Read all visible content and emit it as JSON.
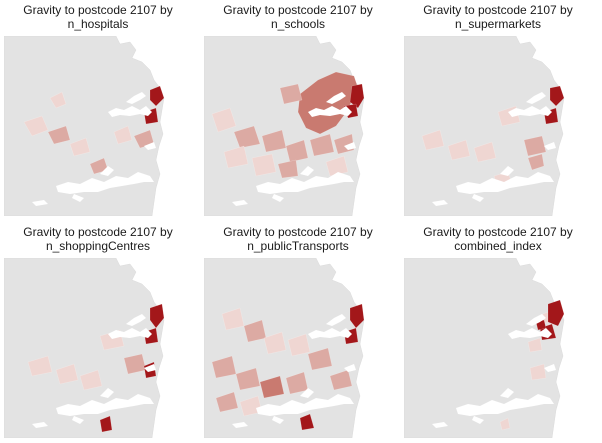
{
  "panels": [
    {
      "line1": "Gravity to postcode 2107 by",
      "line2": "n_hospitals"
    },
    {
      "line1": "Gravity to postcode 2107 by",
      "line2": "n_schools"
    },
    {
      "line1": "Gravity to postcode 2107 by",
      "line2": "n_supermarkets"
    },
    {
      "line1": "Gravity to postcode 2107 by",
      "line2": "n_shoppingCentres"
    },
    {
      "line1": "Gravity to postcode 2107 by",
      "line2": "n_publicTransports"
    },
    {
      "line1": "Gravity to postcode 2107 by",
      "line2": "combined_index"
    }
  ],
  "colors": {
    "base": "#e3e3e3",
    "water": "#ffffff",
    "light": "#efd6d2",
    "mid": "#dcaaa3",
    "strong": "#c97a70",
    "max": "#a3171a"
  }
}
